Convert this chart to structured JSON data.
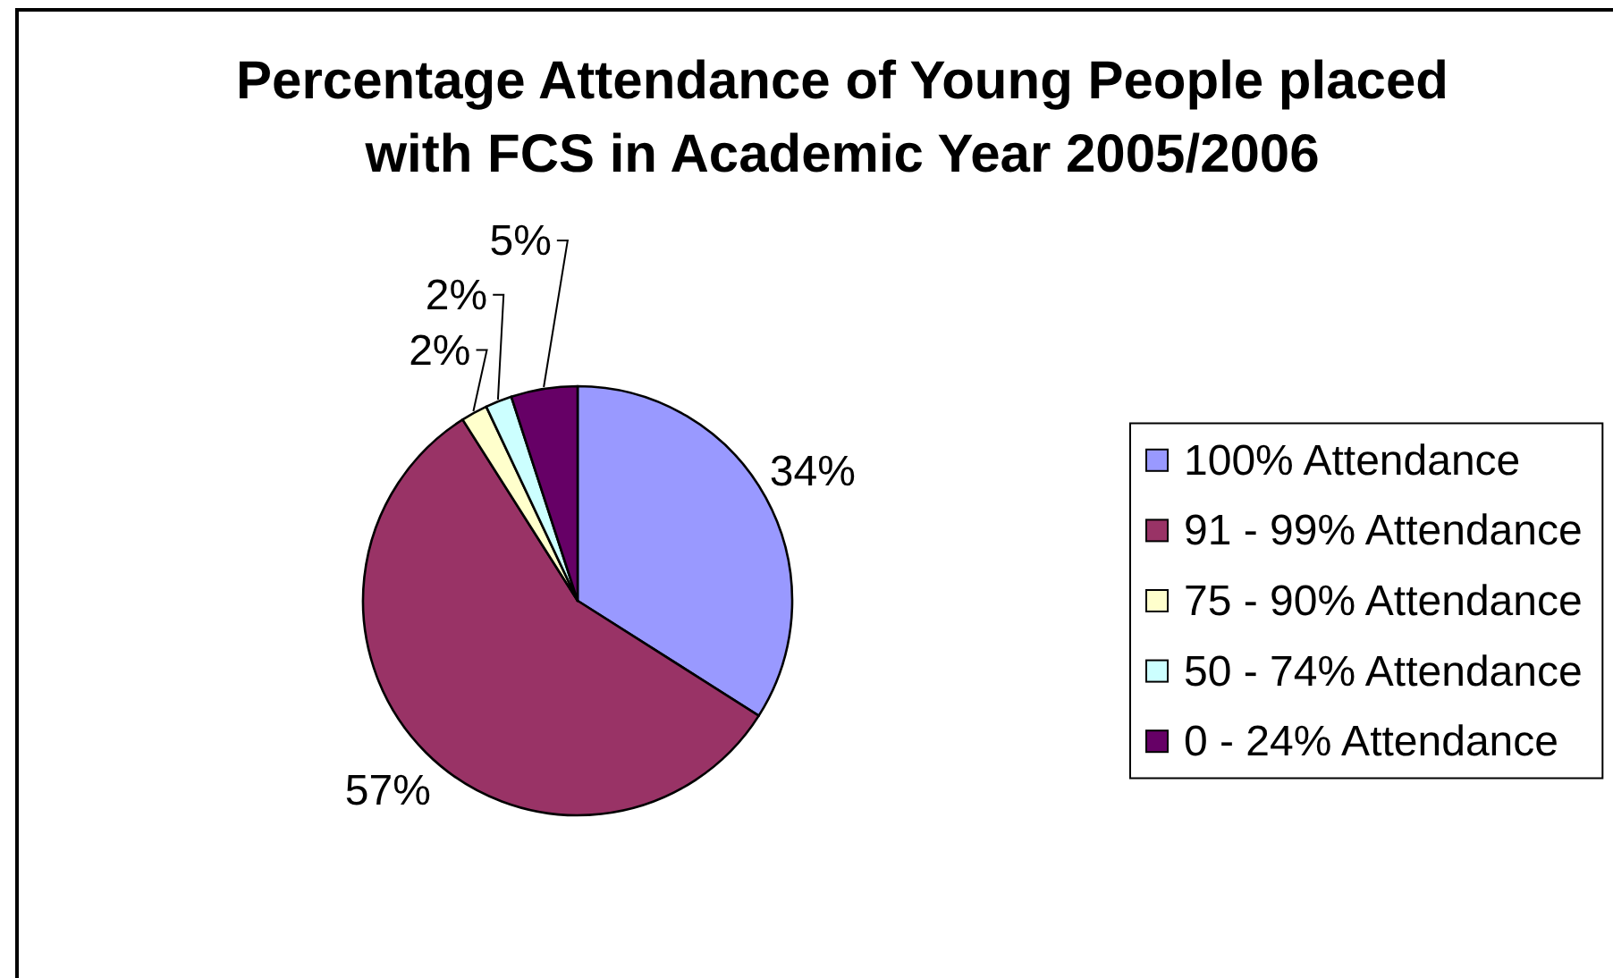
{
  "chart_data": {
    "type": "pie",
    "title": "Percentage Attendance of Young People placed with FCS in Academic Year 2005/2006",
    "categories": [
      "100% Attendance",
      "91 - 99% Attendance",
      "75 - 90% Attendance",
      "50 - 74% Attendance",
      "0 - 24% Attendance"
    ],
    "values": [
      34,
      57,
      2,
      2,
      5
    ],
    "colors": [
      "#9999ff",
      "#993366",
      "#ffffcc",
      "#ccffff",
      "#660066"
    ],
    "value_labels": [
      "34%",
      "57%",
      "2%",
      "2%",
      "5%"
    ],
    "legend": "right"
  }
}
